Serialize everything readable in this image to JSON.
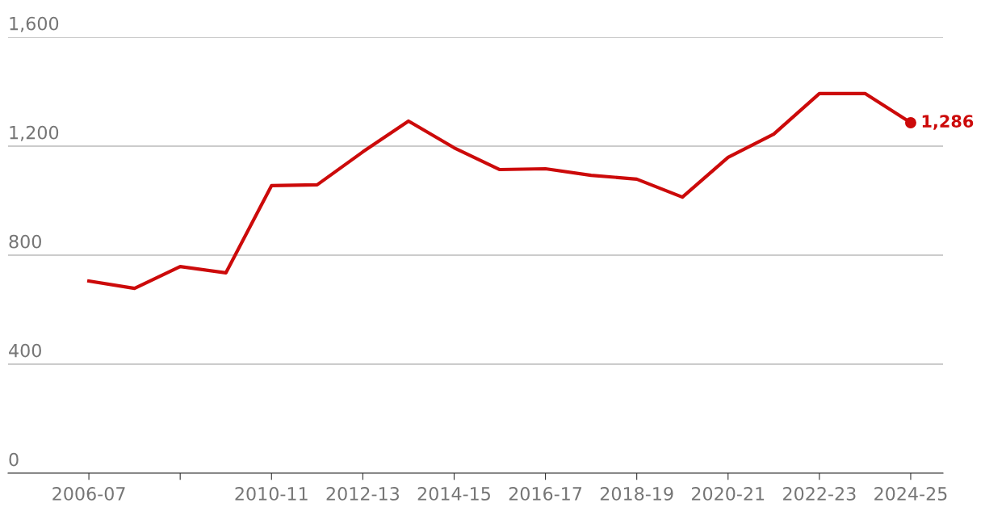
{
  "chart_data": {
    "type": "line",
    "categories": [
      "2006-07",
      null,
      null,
      null,
      "2010-11",
      null,
      "2012-13",
      null,
      "2014-15",
      null,
      "2016-17",
      null,
      "2018-19",
      null,
      "2020-21",
      null,
      "2022-23",
      null,
      "2024-25"
    ],
    "series": [
      {
        "color": "#cc0a0a",
        "values": [
          705,
          678,
          758,
          735,
          1055,
          1058,
          1179,
          1292,
          1194,
          1114,
          1117,
          1093,
          1079,
          1013,
          1159,
          1244,
          1393,
          1393,
          1286
        ]
      }
    ],
    "ylim": [
      0,
      1600
    ],
    "yticks": [
      {
        "value": 0,
        "label": "0"
      },
      {
        "value": 400,
        "label": "400"
      },
      {
        "value": 800,
        "label": "800"
      },
      {
        "value": 1200,
        "label": "1,200"
      },
      {
        "value": 1600,
        "label": "1,600"
      }
    ],
    "grid": "y",
    "marker": "none",
    "line_style": "solid",
    "annotations": [
      {
        "text": "1,286",
        "x": "2024-25",
        "y": 1286
      }
    ]
  }
}
